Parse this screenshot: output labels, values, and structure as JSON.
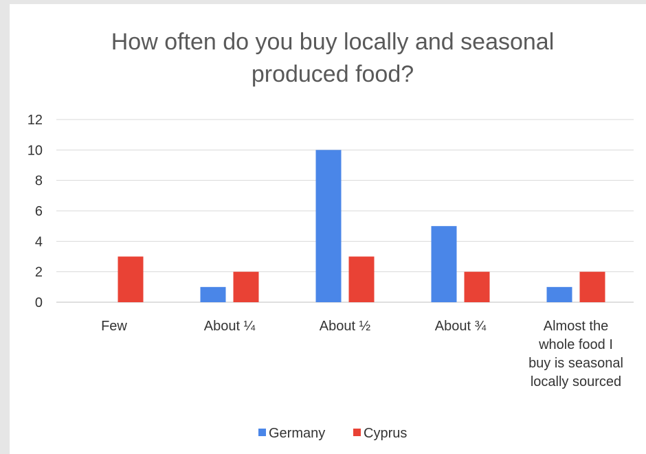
{
  "chart_data": {
    "type": "bar",
    "title_lines": [
      "How often do you buy locally and seasonal",
      "produced food?"
    ],
    "categories": [
      "Few",
      "About ¼",
      "About ½",
      "About ¾",
      "Almost the whole food I buy is seasonal locally sourced"
    ],
    "category_label_lines": [
      [
        "Few"
      ],
      [
        "About ¼"
      ],
      [
        "About ½"
      ],
      [
        "About ¾"
      ],
      [
        "Almost the",
        "whole food I",
        "buy is seasonal",
        "locally sourced"
      ]
    ],
    "series": [
      {
        "name": "Germany",
        "values": [
          0,
          1,
          10,
          5,
          1
        ],
        "color": "#4a86e8"
      },
      {
        "name": "Cyprus",
        "values": [
          3,
          2,
          3,
          2,
          2
        ],
        "color": "#e94235"
      }
    ],
    "ylim": [
      0,
      12
    ],
    "yticks": [
      "0",
      "2",
      "4",
      "6",
      "8",
      "10",
      "12"
    ],
    "grid": true,
    "legend_position": "bottom"
  }
}
